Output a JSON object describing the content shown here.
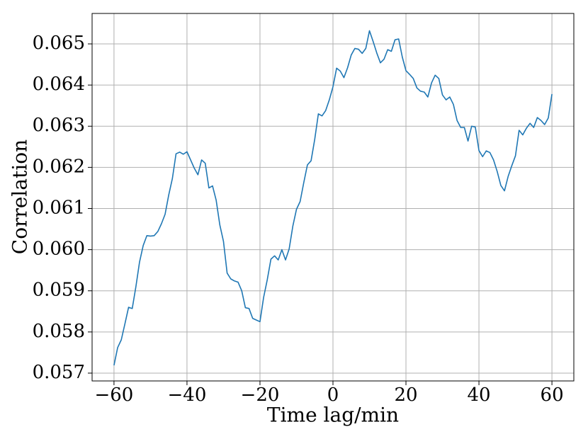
{
  "chart_data": {
    "type": "line",
    "xlabel": "Time lag/min",
    "ylabel": "Correlation",
    "x": [
      -60,
      -59,
      -58,
      -57,
      -56,
      -55,
      -54,
      -53,
      -52,
      -51,
      -50,
      -49,
      -48,
      -47,
      -46,
      -45,
      -44,
      -43,
      -42,
      -41,
      -40,
      -39,
      -38,
      -37,
      -36,
      -35,
      -34,
      -33,
      -32,
      -31,
      -30,
      -29,
      -28,
      -27,
      -26,
      -25,
      -24,
      -23,
      -22,
      -21,
      -20,
      -19,
      -18,
      -17,
      -16,
      -15,
      -14,
      -13,
      -12,
      -11,
      -10,
      -9,
      -8,
      -7,
      -6,
      -5,
      -4,
      -3,
      -2,
      -1,
      0,
      1,
      2,
      3,
      4,
      5,
      6,
      7,
      8,
      9,
      10,
      11,
      12,
      13,
      14,
      15,
      16,
      17,
      18,
      19,
      20,
      21,
      22,
      23,
      24,
      25,
      26,
      27,
      28,
      29,
      30,
      31,
      32,
      33,
      34,
      35,
      36,
      37,
      38,
      39,
      40,
      41,
      42,
      43,
      44,
      45,
      46,
      47,
      48,
      49,
      50,
      51,
      52,
      53,
      54,
      55,
      56,
      57,
      58,
      59,
      60
    ],
    "values": [
      0.05719,
      0.05762,
      0.05781,
      0.0582,
      0.0586,
      0.05857,
      0.0591,
      0.0597,
      0.0601,
      0.06034,
      0.06033,
      0.06034,
      0.06044,
      0.06063,
      0.06086,
      0.06133,
      0.06173,
      0.06233,
      0.06237,
      0.06232,
      0.06238,
      0.06218,
      0.06198,
      0.06182,
      0.06218,
      0.0621,
      0.0615,
      0.06155,
      0.0612,
      0.0606,
      0.0602,
      0.05943,
      0.05929,
      0.05924,
      0.05921,
      0.059,
      0.05859,
      0.05857,
      0.05833,
      0.05829,
      0.05825,
      0.05884,
      0.05927,
      0.05977,
      0.05985,
      0.05975,
      0.06,
      0.05975,
      0.06002,
      0.06057,
      0.06098,
      0.06117,
      0.06163,
      0.06206,
      0.06216,
      0.06268,
      0.0633,
      0.06325,
      0.06338,
      0.06364,
      0.06396,
      0.06441,
      0.06434,
      0.06418,
      0.06442,
      0.06473,
      0.06489,
      0.06487,
      0.06477,
      0.06489,
      0.06532,
      0.06506,
      0.06478,
      0.06454,
      0.06463,
      0.06486,
      0.06482,
      0.0651,
      0.06512,
      0.06468,
      0.06435,
      0.06426,
      0.06416,
      0.06393,
      0.06385,
      0.06383,
      0.06371,
      0.06405,
      0.06424,
      0.06416,
      0.06376,
      0.06364,
      0.06371,
      0.06353,
      0.06314,
      0.06297,
      0.06297,
      0.06264,
      0.063,
      0.06298,
      0.06241,
      0.06226,
      0.0624,
      0.06236,
      0.06218,
      0.0619,
      0.06156,
      0.06143,
      0.06178,
      0.06204,
      0.06228,
      0.0629,
      0.06279,
      0.06295,
      0.06307,
      0.06297,
      0.06321,
      0.06314,
      0.06304,
      0.0632,
      0.06378
    ],
    "color": "#1f77b4",
    "xlim": [
      -66,
      66
    ],
    "xticks": [
      {
        "value": -60,
        "label": "−60"
      },
      {
        "value": -40,
        "label": "−40"
      },
      {
        "value": -20,
        "label": "−20"
      },
      0,
      20,
      40,
      60
    ],
    "ylim": [
      0.05681,
      0.06574
    ],
    "yticks": [
      0.057,
      0.058,
      0.059,
      {
        "value": 0.06,
        "label": "0.060"
      },
      0.061,
      0.062,
      0.063,
      0.064,
      0.065
    ],
    "grid": true
  }
}
